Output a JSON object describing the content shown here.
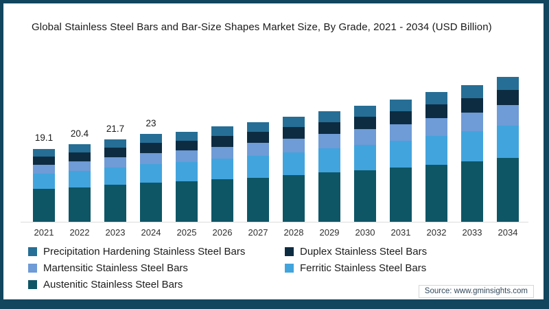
{
  "frame": {
    "border_color": "#12465e",
    "background": "#ffffff"
  },
  "chart_data": {
    "type": "bar",
    "stacked": true,
    "title": "Global Stainless Steel Bars and Bar-Size Shapes Market Size, By Grade, 2021 - 2034 (USD Billion)",
    "unit": "USD Billion",
    "categories": [
      "2021",
      "2022",
      "2023",
      "2024",
      "2025",
      "2026",
      "2027",
      "2028",
      "2029",
      "2030",
      "2031",
      "2032",
      "2033",
      "2034"
    ],
    "series": [
      {
        "name": "Austenitic Stainless Steel Bars",
        "key": "austenitic",
        "color": "#0e5666",
        "values": [
          8.6,
          9.1,
          9.7,
          10.3,
          10.6,
          11.1,
          11.6,
          12.2,
          12.9,
          13.5,
          14.2,
          15.0,
          15.8,
          16.7
        ]
      },
      {
        "name": "Ferritic Stainless Steel Bars",
        "key": "ferritic",
        "color": "#42a4dd",
        "values": [
          4.0,
          4.3,
          4.6,
          4.9,
          5.1,
          5.4,
          5.7,
          6.0,
          6.3,
          6.7,
          7.1,
          7.6,
          8.0,
          8.6
        ]
      },
      {
        "name": "Martensitic Stainless Steel Bars",
        "key": "martensitic",
        "color": "#6f9bd6",
        "values": [
          2.3,
          2.5,
          2.7,
          2.9,
          3.0,
          3.2,
          3.4,
          3.6,
          3.8,
          4.1,
          4.3,
          4.6,
          4.9,
          5.3
        ]
      },
      {
        "name": "Duplex Stainless Steel Bars",
        "key": "duplex",
        "color": "#0d2c42",
        "values": [
          2.2,
          2.3,
          2.4,
          2.6,
          2.6,
          2.8,
          2.9,
          3.0,
          3.2,
          3.3,
          3.5,
          3.6,
          3.8,
          4.0
        ]
      },
      {
        "name": "Precipitation Hardening Stainless Steel Bars",
        "key": "precipitation-hardening",
        "color": "#266e95",
        "values": [
          2.1,
          2.2,
          2.3,
          2.4,
          2.4,
          2.5,
          2.6,
          2.7,
          2.8,
          2.9,
          3.0,
          3.2,
          3.3,
          3.4
        ]
      }
    ],
    "bar_labels": [
      "19.1",
      "20.4",
      "21.7",
      "23",
      "",
      "",
      "",
      "",
      "",
      "",
      "",
      "",
      "",
      ""
    ],
    "legend_position": "bottom-left",
    "legend_columns": [
      {
        "items": [
          {
            "label": "Precipitation Hardening Stainless Steel Bars",
            "color": "#266e95"
          },
          {
            "label": "Martensitic Stainless Steel Bars",
            "color": "#6f9bd6"
          },
          {
            "label": "Austenitic Stainless Steel Bars",
            "color": "#0e5666"
          }
        ]
      },
      {
        "items": [
          {
            "label": "Duplex Stainless Steel Bars",
            "color": "#0d2c42"
          },
          {
            "label": "Ferritic Stainless Steel Bars",
            "color": "#42a4dd"
          }
        ]
      }
    ]
  },
  "source": {
    "label": "Source: www.gminsights.com"
  }
}
